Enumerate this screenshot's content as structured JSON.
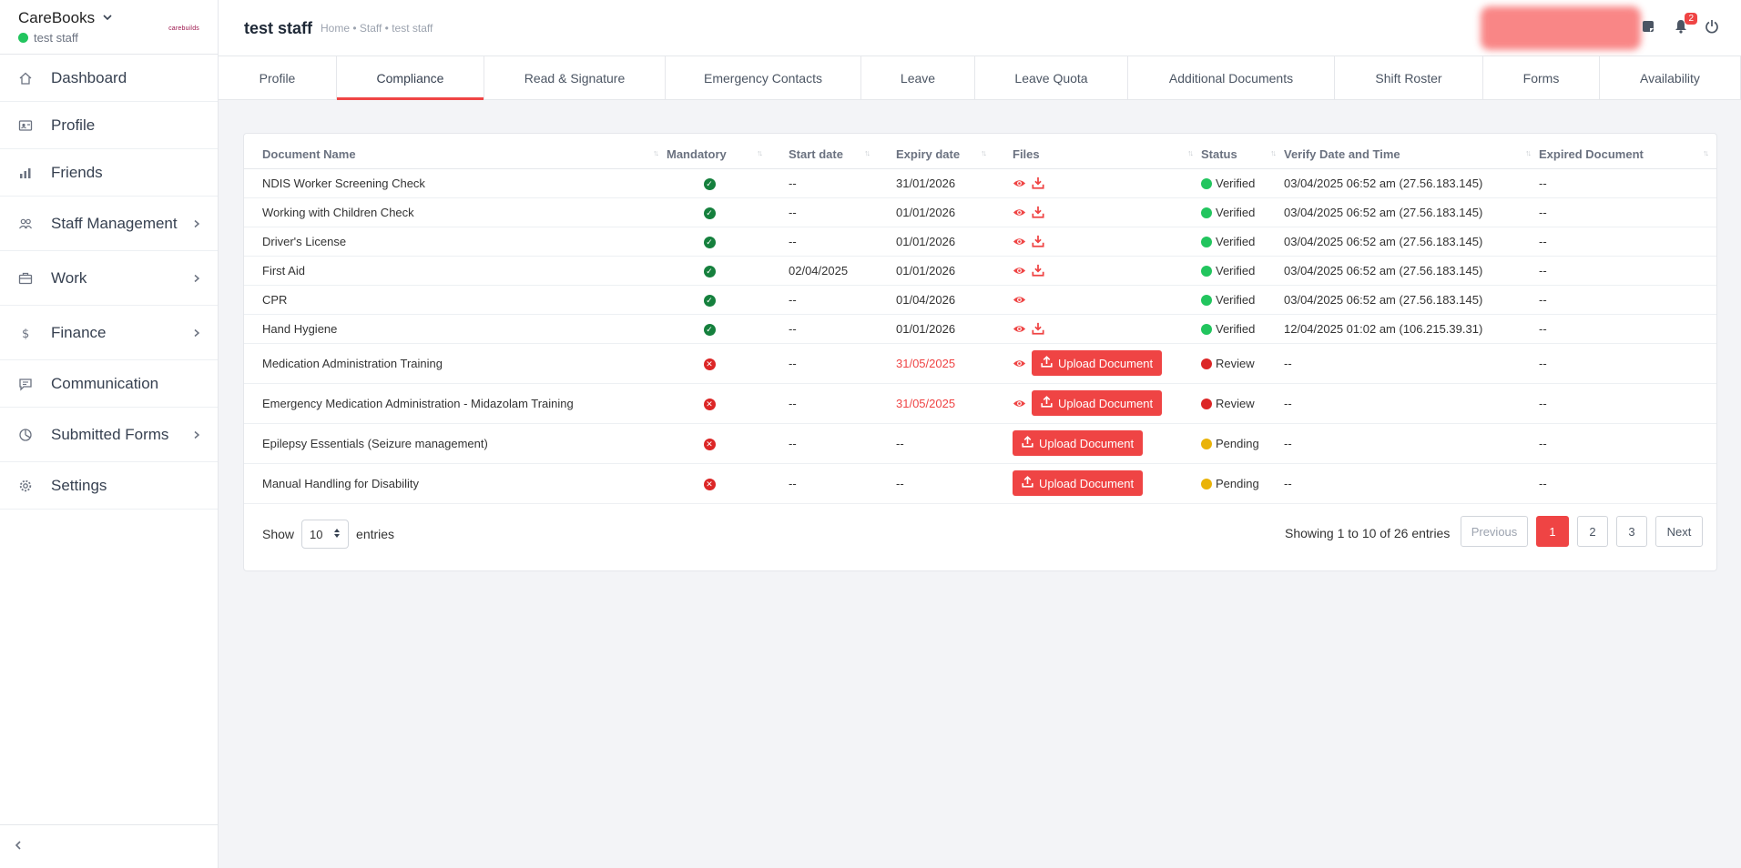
{
  "sidebar": {
    "brand": "CareBooks",
    "user": "test staff",
    "logo_text": "carebuilds",
    "items": [
      {
        "label": "Dashboard",
        "icon": "home-icon",
        "chevron": false
      },
      {
        "label": "Profile",
        "icon": "id-card-icon",
        "chevron": false
      },
      {
        "label": "Friends",
        "icon": "bar-chart-icon",
        "chevron": false
      },
      {
        "label": "Staff Management",
        "icon": "users-icon",
        "chevron": true
      },
      {
        "label": "Work",
        "icon": "briefcase-icon",
        "chevron": true
      },
      {
        "label": "Finance",
        "icon": "dollar-icon",
        "chevron": true
      },
      {
        "label": "Communication",
        "icon": "chat-icon",
        "chevron": false
      },
      {
        "label": "Submitted Forms",
        "icon": "pie-chart-icon",
        "chevron": true
      },
      {
        "label": "Settings",
        "icon": "gear-icon",
        "chevron": false
      }
    ]
  },
  "header": {
    "title": "test staff",
    "breadcrumb": "Home • Staff • test staff",
    "notification_count": "2"
  },
  "tabs": [
    "Profile",
    "Compliance",
    "Read & Signature",
    "Emergency Contacts",
    "Leave",
    "Leave Quota",
    "Additional Documents",
    "Shift Roster",
    "Forms",
    "Availability"
  ],
  "active_tab": "Compliance",
  "table": {
    "columns": [
      "Document Name",
      "Mandatory",
      "Start date",
      "Expiry date",
      "Files",
      "Status",
      "Verify Date and Time",
      "Expired Document"
    ],
    "upload_label": "Upload Document",
    "rows": [
      {
        "name": "NDIS Worker Screening Check",
        "mandatory": true,
        "start": "--",
        "expiry": "31/01/2026",
        "expiry_red": false,
        "view": true,
        "download": true,
        "upload": false,
        "status": "Verified",
        "status_color": "#22c55e",
        "verify": "03/04/2025 06:52 am (27.56.183.145)",
        "expired": "--"
      },
      {
        "name": "Working with Children Check",
        "mandatory": true,
        "start": "--",
        "expiry": "01/01/2026",
        "expiry_red": false,
        "view": true,
        "download": true,
        "upload": false,
        "status": "Verified",
        "status_color": "#22c55e",
        "verify": "03/04/2025 06:52 am (27.56.183.145)",
        "expired": "--"
      },
      {
        "name": "Driver's License",
        "mandatory": true,
        "start": "--",
        "expiry": "01/01/2026",
        "expiry_red": false,
        "view": true,
        "download": true,
        "upload": false,
        "status": "Verified",
        "status_color": "#22c55e",
        "verify": "03/04/2025 06:52 am (27.56.183.145)",
        "expired": "--"
      },
      {
        "name": "First Aid",
        "mandatory": true,
        "start": "02/04/2025",
        "expiry": "01/01/2026",
        "expiry_red": false,
        "view": true,
        "download": true,
        "upload": false,
        "status": "Verified",
        "status_color": "#22c55e",
        "verify": "03/04/2025 06:52 am (27.56.183.145)",
        "expired": "--"
      },
      {
        "name": "CPR",
        "mandatory": true,
        "start": "--",
        "expiry": "01/04/2026",
        "expiry_red": false,
        "view": true,
        "download": false,
        "upload": false,
        "status": "Verified",
        "status_color": "#22c55e",
        "verify": "03/04/2025 06:52 am (27.56.183.145)",
        "expired": "--"
      },
      {
        "name": "Hand Hygiene",
        "mandatory": true,
        "start": "--",
        "expiry": "01/01/2026",
        "expiry_red": false,
        "view": true,
        "download": true,
        "upload": false,
        "status": "Verified",
        "status_color": "#22c55e",
        "verify": "12/04/2025 01:02 am (106.215.39.31)",
        "expired": "--"
      },
      {
        "name": "Medication Administration Training",
        "mandatory": false,
        "start": "--",
        "expiry": "31/05/2025",
        "expiry_red": true,
        "view": true,
        "download": false,
        "upload": true,
        "status": "Review",
        "status_color": "#dc2626",
        "verify": "--",
        "expired": "--"
      },
      {
        "name": "Emergency Medication Administration - Midazolam Training",
        "mandatory": false,
        "start": "--",
        "expiry": "31/05/2025",
        "expiry_red": true,
        "view": true,
        "download": false,
        "upload": true,
        "status": "Review",
        "status_color": "#dc2626",
        "verify": "--",
        "expired": "--"
      },
      {
        "name": "Epilepsy Essentials (Seizure management)",
        "mandatory": false,
        "start": "--",
        "expiry": "--",
        "expiry_red": false,
        "view": false,
        "download": false,
        "upload": true,
        "status": "Pending",
        "status_color": "#eab308",
        "verify": "--",
        "expired": "--"
      },
      {
        "name": "Manual Handling for Disability",
        "mandatory": false,
        "start": "--",
        "expiry": "--",
        "expiry_red": false,
        "view": false,
        "download": false,
        "upload": true,
        "status": "Pending",
        "status_color": "#eab308",
        "verify": "--",
        "expired": "--"
      }
    ]
  },
  "footer": {
    "show_label": "Show",
    "entries_value": "10",
    "entries_label": "entries",
    "showing_text": "Showing 1 to 10 of 26 entries",
    "prev_label": "Previous",
    "next_label": "Next",
    "pages": [
      "1",
      "2",
      "3"
    ],
    "current_page": "1"
  },
  "colors": {
    "accent": "#ef4444",
    "verified": "#22c55e",
    "review": "#dc2626",
    "pending": "#eab308"
  }
}
